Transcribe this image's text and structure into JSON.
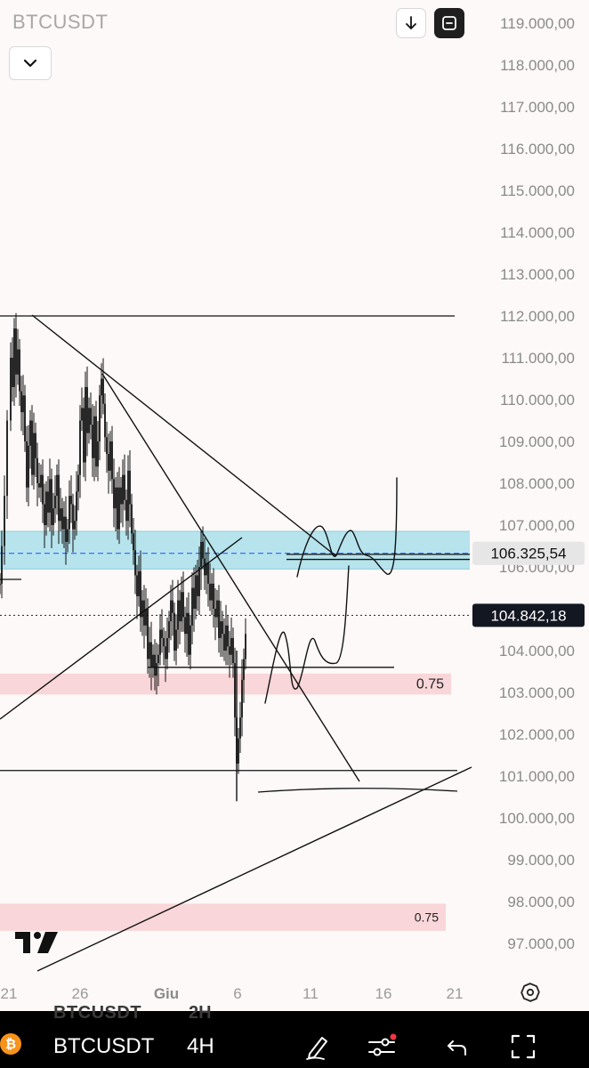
{
  "header": {
    "symbol": "BTCUSDT"
  },
  "icons": {
    "collapse": "chevron-down-icon",
    "download": "arrow-down-icon",
    "fullscreen": "fullscreen-icon",
    "settings": "gear-icon",
    "logo": "tradingview-logo"
  },
  "bottom_bar": {
    "symbol": "BTCUSDT",
    "timeframe": "4H",
    "ghost_symbol": "BTCUSDT",
    "ghost_timeframe": "2H"
  },
  "colors": {
    "resistance_zone": "#b6e3ec",
    "fib_zone": "#f9d6d9",
    "price_tag_light": "#e6e6e6",
    "price_tag_dark": "#131722",
    "accent_red": "#f23645",
    "btc_orange": "#f7931a"
  },
  "chart_data": {
    "type": "candlestick",
    "symbol": "BTCUSDT",
    "timeframe": "4H",
    "y_axis": {
      "min": 97000,
      "max": 119000,
      "tick_labels": [
        "119.000,00",
        "118.000,00",
        "117.000,00",
        "116.000,00",
        "115.000,00",
        "114.000,00",
        "113.000,00",
        "112.000,00",
        "111.000,00",
        "110.000,00",
        "109.000,00",
        "108.000,00",
        "107.000,00",
        "106.000,00",
        "105.000,00",
        "104.000,00",
        "103.000,00",
        "102.000,00",
        "101.000,00",
        "100.000,00",
        "99.000,00",
        "98.000,00",
        "97.000,00"
      ]
    },
    "x_axis": {
      "tick_labels": [
        "21",
        "26",
        "Giu",
        "6",
        "11",
        "16",
        "21"
      ]
    },
    "price_tags": [
      {
        "label": "106.325,54",
        "value": 106325.54,
        "style": "light"
      },
      {
        "label": "104.842,18",
        "value": 104842.18,
        "style": "dark"
      }
    ],
    "zones": [
      {
        "name": "resistance",
        "from": 105950,
        "to": 106850
      },
      {
        "name": "fib",
        "label": "0.75",
        "from": 102950,
        "to": 103450
      },
      {
        "name": "fib_lower",
        "label": "0.75",
        "from": 97300,
        "to": 97950
      }
    ],
    "horizontal_levels": [
      112000,
      106300,
      106180,
      103600,
      100750
    ],
    "price_series": [
      {
        "t": 0,
        "p": 105600
      },
      {
        "t": 2,
        "p": 106500
      },
      {
        "t": 5,
        "p": 107700
      },
      {
        "t": 8,
        "p": 109500
      },
      {
        "t": 12,
        "p": 111000
      },
      {
        "t": 14,
        "p": 110300
      },
      {
        "t": 16,
        "p": 111700
      },
      {
        "t": 18,
        "p": 110600
      },
      {
        "t": 20,
        "p": 111200
      },
      {
        "t": 22,
        "p": 110200
      },
      {
        "t": 24,
        "p": 109700
      },
      {
        "t": 26,
        "p": 110100
      },
      {
        "t": 28,
        "p": 109000
      },
      {
        "t": 30,
        "p": 107900
      },
      {
        "t": 32,
        "p": 108900
      },
      {
        "t": 34,
        "p": 109500
      },
      {
        "t": 36,
        "p": 108200
      },
      {
        "t": 38,
        "p": 109200
      },
      {
        "t": 40,
        "p": 108600
      },
      {
        "t": 42,
        "p": 108000
      },
      {
        "t": 44,
        "p": 107900
      },
      {
        "t": 46,
        "p": 108200
      },
      {
        "t": 48,
        "p": 107500
      },
      {
        "t": 50,
        "p": 107000
      },
      {
        "t": 52,
        "p": 107800
      },
      {
        "t": 54,
        "p": 107300
      },
      {
        "t": 56,
        "p": 108100
      },
      {
        "t": 58,
        "p": 107000
      },
      {
        "t": 60,
        "p": 107400
      },
      {
        "t": 62,
        "p": 107700
      },
      {
        "t": 64,
        "p": 108200
      },
      {
        "t": 66,
        "p": 107100
      },
      {
        "t": 68,
        "p": 107400
      },
      {
        "t": 70,
        "p": 106900
      },
      {
        "t": 72,
        "p": 107200
      },
      {
        "t": 74,
        "p": 106600
      },
      {
        "t": 76,
        "p": 106900
      },
      {
        "t": 78,
        "p": 107700
      },
      {
        "t": 80,
        "p": 107500
      },
      {
        "t": 82,
        "p": 106900
      },
      {
        "t": 84,
        "p": 107100
      },
      {
        "t": 86,
        "p": 107800
      },
      {
        "t": 88,
        "p": 108200
      },
      {
        "t": 90,
        "p": 109500
      },
      {
        "t": 92,
        "p": 109800
      },
      {
        "t": 94,
        "p": 108500
      },
      {
        "t": 96,
        "p": 110300
      },
      {
        "t": 98,
        "p": 109200
      },
      {
        "t": 100,
        "p": 109800
      },
      {
        "t": 102,
        "p": 109400
      },
      {
        "t": 104,
        "p": 108600
      },
      {
        "t": 106,
        "p": 109600
      },
      {
        "t": 108,
        "p": 108400
      },
      {
        "t": 110,
        "p": 109000
      },
      {
        "t": 112,
        "p": 110100
      },
      {
        "t": 114,
        "p": 110500
      },
      {
        "t": 116,
        "p": 109900
      },
      {
        "t": 118,
        "p": 109100
      },
      {
        "t": 120,
        "p": 108700
      },
      {
        "t": 122,
        "p": 108300
      },
      {
        "t": 124,
        "p": 109000
      },
      {
        "t": 126,
        "p": 108100
      },
      {
        "t": 128,
        "p": 107400
      },
      {
        "t": 130,
        "p": 107900
      },
      {
        "t": 132,
        "p": 106900
      },
      {
        "t": 134,
        "p": 107900
      },
      {
        "t": 136,
        "p": 107500
      },
      {
        "t": 138,
        "p": 108200
      },
      {
        "t": 140,
        "p": 107600
      },
      {
        "t": 142,
        "p": 107100
      },
      {
        "t": 144,
        "p": 108300
      },
      {
        "t": 146,
        "p": 107500
      },
      {
        "t": 148,
        "p": 106800
      },
      {
        "t": 150,
        "p": 106400
      },
      {
        "t": 152,
        "p": 105800
      },
      {
        "t": 154,
        "p": 105300
      },
      {
        "t": 156,
        "p": 105900
      },
      {
        "t": 158,
        "p": 104800
      },
      {
        "t": 160,
        "p": 105200
      },
      {
        "t": 162,
        "p": 104600
      },
      {
        "t": 164,
        "p": 105000
      },
      {
        "t": 166,
        "p": 103800
      },
      {
        "t": 168,
        "p": 104200
      },
      {
        "t": 170,
        "p": 103600
      },
      {
        "t": 172,
        "p": 103900
      },
      {
        "t": 174,
        "p": 103400
      },
      {
        "t": 176,
        "p": 103700
      },
      {
        "t": 178,
        "p": 103900
      },
      {
        "t": 180,
        "p": 104500
      },
      {
        "t": 182,
        "p": 104300
      },
      {
        "t": 184,
        "p": 104100
      },
      {
        "t": 186,
        "p": 103800
      },
      {
        "t": 188,
        "p": 104300
      },
      {
        "t": 190,
        "p": 104700
      },
      {
        "t": 192,
        "p": 105200
      },
      {
        "t": 194,
        "p": 104900
      },
      {
        "t": 196,
        "p": 104000
      },
      {
        "t": 198,
        "p": 104500
      },
      {
        "t": 200,
        "p": 105200
      },
      {
        "t": 202,
        "p": 104700
      },
      {
        "t": 204,
        "p": 105400
      },
      {
        "t": 206,
        "p": 104800
      },
      {
        "t": 208,
        "p": 104400
      },
      {
        "t": 210,
        "p": 104900
      },
      {
        "t": 212,
        "p": 103900
      },
      {
        "t": 214,
        "p": 104600
      },
      {
        "t": 216,
        "p": 105500
      },
      {
        "t": 218,
        "p": 105000
      },
      {
        "t": 220,
        "p": 105800
      },
      {
        "t": 222,
        "p": 105300
      },
      {
        "t": 224,
        "p": 106000
      },
      {
        "t": 226,
        "p": 106600
      },
      {
        "t": 228,
        "p": 106200
      },
      {
        "t": 230,
        "p": 105800
      },
      {
        "t": 232,
        "p": 106100
      },
      {
        "t": 234,
        "p": 105600
      },
      {
        "t": 236,
        "p": 105200
      },
      {
        "t": 238,
        "p": 105600
      },
      {
        "t": 240,
        "p": 105000
      },
      {
        "t": 242,
        "p": 104800
      },
      {
        "t": 244,
        "p": 105200
      },
      {
        "t": 246,
        "p": 104300
      },
      {
        "t": 248,
        "p": 104700
      },
      {
        "t": 250,
        "p": 104400
      },
      {
        "t": 252,
        "p": 104000
      },
      {
        "t": 254,
        "p": 104600
      },
      {
        "t": 256,
        "p": 104100
      },
      {
        "t": 258,
        "p": 103900
      },
      {
        "t": 260,
        "p": 104300
      },
      {
        "t": 262,
        "p": 103700
      },
      {
        "t": 264,
        "p": 102400
      },
      {
        "t": 266,
        "p": 101300
      },
      {
        "t": 268,
        "p": 101900
      },
      {
        "t": 270,
        "p": 102400
      },
      {
        "t": 272,
        "p": 103300
      },
      {
        "t": 274,
        "p": 103800
      },
      {
        "t": 276,
        "p": 104400
      }
    ]
  }
}
